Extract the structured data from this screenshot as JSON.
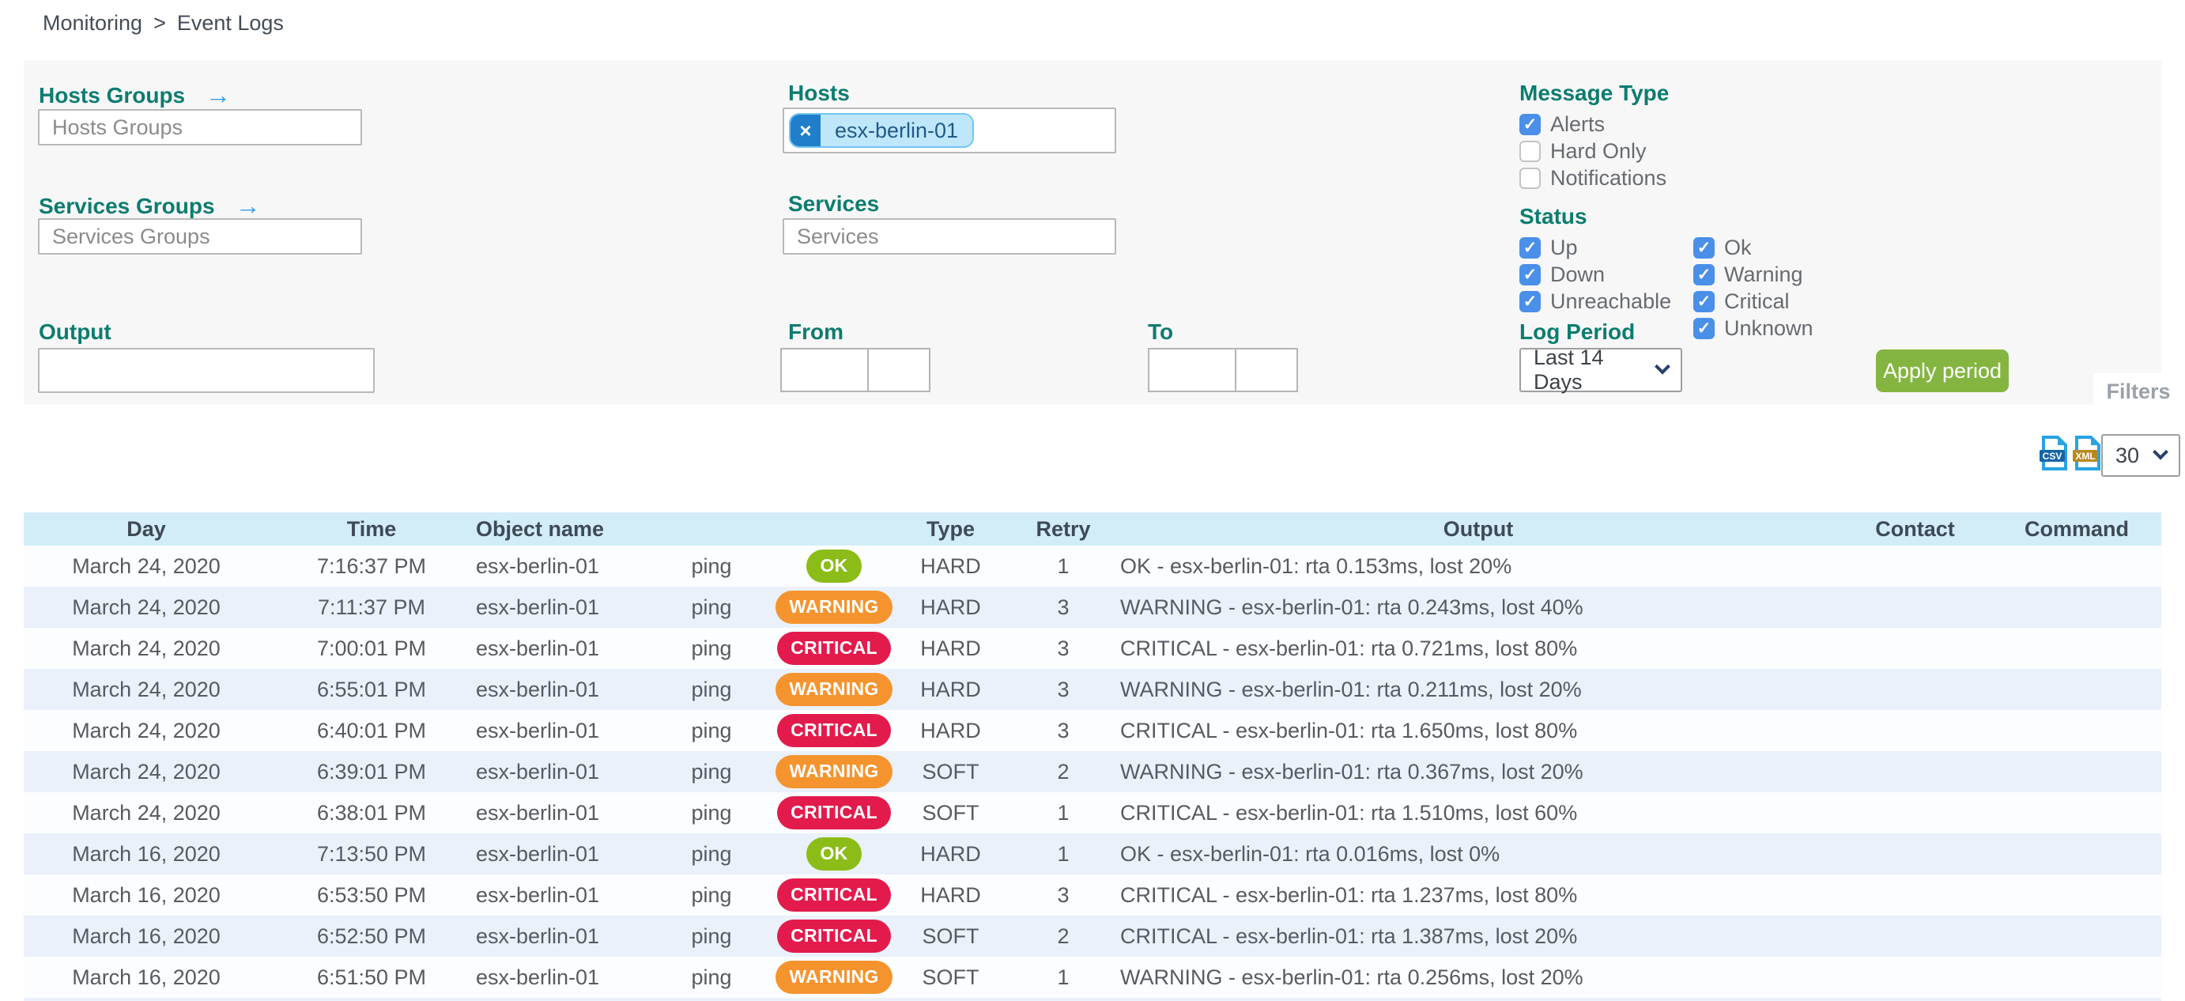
{
  "breadcrumb": {
    "section": "Monitoring",
    "separator": ">",
    "page": "Event Logs"
  },
  "filters": {
    "tab_label": "Filters",
    "hosts_groups": {
      "label": "Hosts Groups",
      "arrow_icon": "→",
      "placeholder": "Hosts Groups",
      "value": ""
    },
    "services_groups": {
      "label": "Services Groups",
      "arrow_icon": "→",
      "placeholder": "Services Groups",
      "value": ""
    },
    "hosts": {
      "label": "Hosts",
      "selected": [
        {
          "text": "esx-berlin-01",
          "remove_icon": "×"
        }
      ]
    },
    "services": {
      "label": "Services",
      "placeholder": "Services",
      "value": ""
    },
    "output": {
      "label": "Output",
      "value": ""
    },
    "from": {
      "label": "From",
      "date_value": "",
      "time_value": ""
    },
    "to": {
      "label": "To",
      "date_value": "",
      "time_value": ""
    },
    "message_type": {
      "label": "Message Type",
      "options": [
        {
          "label": "Alerts",
          "checked": true
        },
        {
          "label": "Hard Only",
          "checked": false
        },
        {
          "label": "Notifications",
          "checked": false
        }
      ]
    },
    "status": {
      "label": "Status",
      "columns": [
        [
          {
            "label": "Up",
            "checked": true
          },
          {
            "label": "Down",
            "checked": true
          },
          {
            "label": "Unreachable",
            "checked": true
          }
        ],
        [
          {
            "label": "Ok",
            "checked": true
          },
          {
            "label": "Warning",
            "checked": true
          },
          {
            "label": "Critical",
            "checked": true
          },
          {
            "label": "Unknown",
            "checked": true
          }
        ]
      ]
    },
    "log_period": {
      "label": "Log Period",
      "selected": "Last 14 Days"
    },
    "apply_button_label": "Apply period"
  },
  "toolbar": {
    "export_csv_label": "CSV",
    "export_xml_label": "XML",
    "rows_per_page": "30"
  },
  "table": {
    "headers": {
      "day": "Day",
      "time": "Time",
      "object": "Object name",
      "service": "",
      "status": "",
      "type": "Type",
      "retry": "Retry",
      "output": "Output",
      "contact": "Contact",
      "command": "Command"
    },
    "rows": [
      {
        "day": "March 24, 2020",
        "time": "7:16:37 PM",
        "object": "esx-berlin-01",
        "service": "ping",
        "status": "OK",
        "type": "HARD",
        "retry": "1",
        "output": "OK - esx-berlin-01: rta 0.153ms, lost 20%",
        "contact": "",
        "command": ""
      },
      {
        "day": "March 24, 2020",
        "time": "7:11:37 PM",
        "object": "esx-berlin-01",
        "service": "ping",
        "status": "WARNING",
        "type": "HARD",
        "retry": "3",
        "output": "WARNING - esx-berlin-01: rta 0.243ms, lost 40%",
        "contact": "",
        "command": ""
      },
      {
        "day": "March 24, 2020",
        "time": "7:00:01 PM",
        "object": "esx-berlin-01",
        "service": "ping",
        "status": "CRITICAL",
        "type": "HARD",
        "retry": "3",
        "output": "CRITICAL - esx-berlin-01: rta 0.721ms, lost 80%",
        "contact": "",
        "command": ""
      },
      {
        "day": "March 24, 2020",
        "time": "6:55:01 PM",
        "object": "esx-berlin-01",
        "service": "ping",
        "status": "WARNING",
        "type": "HARD",
        "retry": "3",
        "output": "WARNING - esx-berlin-01: rta 0.211ms, lost 20%",
        "contact": "",
        "command": ""
      },
      {
        "day": "March 24, 2020",
        "time": "6:40:01 PM",
        "object": "esx-berlin-01",
        "service": "ping",
        "status": "CRITICAL",
        "type": "HARD",
        "retry": "3",
        "output": "CRITICAL - esx-berlin-01: rta 1.650ms, lost 80%",
        "contact": "",
        "command": ""
      },
      {
        "day": "March 24, 2020",
        "time": "6:39:01 PM",
        "object": "esx-berlin-01",
        "service": "ping",
        "status": "WARNING",
        "type": "SOFT",
        "retry": "2",
        "output": "WARNING - esx-berlin-01: rta 0.367ms, lost 20%",
        "contact": "",
        "command": ""
      },
      {
        "day": "March 24, 2020",
        "time": "6:38:01 PM",
        "object": "esx-berlin-01",
        "service": "ping",
        "status": "CRITICAL",
        "type": "SOFT",
        "retry": "1",
        "output": "CRITICAL - esx-berlin-01: rta 1.510ms, lost 60%",
        "contact": "",
        "command": ""
      },
      {
        "day": "March 16, 2020",
        "time": "7:13:50 PM",
        "object": "esx-berlin-01",
        "service": "ping",
        "status": "OK",
        "type": "HARD",
        "retry": "1",
        "output": "OK - esx-berlin-01: rta 0.016ms, lost 0%",
        "contact": "",
        "command": ""
      },
      {
        "day": "March 16, 2020",
        "time": "6:53:50 PM",
        "object": "esx-berlin-01",
        "service": "ping",
        "status": "CRITICAL",
        "type": "HARD",
        "retry": "3",
        "output": "CRITICAL - esx-berlin-01: rta 1.237ms, lost 80%",
        "contact": "",
        "command": ""
      },
      {
        "day": "March 16, 2020",
        "time": "6:52:50 PM",
        "object": "esx-berlin-01",
        "service": "ping",
        "status": "CRITICAL",
        "type": "SOFT",
        "retry": "2",
        "output": "CRITICAL - esx-berlin-01: rta 1.387ms, lost 20%",
        "contact": "",
        "command": ""
      },
      {
        "day": "March 16, 2020",
        "time": "6:51:50 PM",
        "object": "esx-berlin-01",
        "service": "ping",
        "status": "WARNING",
        "type": "SOFT",
        "retry": "1",
        "output": "WARNING - esx-berlin-01: rta 0.256ms, lost 20%",
        "contact": "",
        "command": ""
      }
    ]
  },
  "colors": {
    "label_teal": "#0c7c70",
    "arrow_blue": "#2f9ff0",
    "checkbox_blue": "#4a8fe8",
    "chip_bg": "#bfe7fb",
    "chip_border": "#70c6f2",
    "chip_text": "#215a86",
    "chip_remove_bg": "#1f7fca",
    "apply_green": "#84b540",
    "status_ok": "#8bbc17",
    "status_warning": "#f5942e",
    "status_critical": "#e31b4c",
    "table_header_bg": "#d2edf8",
    "row_bg": "#fcfdff",
    "row_alt_bg": "#ebf1fb",
    "file_icon_blue": "#29a3e3",
    "csv_badge": "#1565a7",
    "xml_badge": "#b8891d"
  }
}
